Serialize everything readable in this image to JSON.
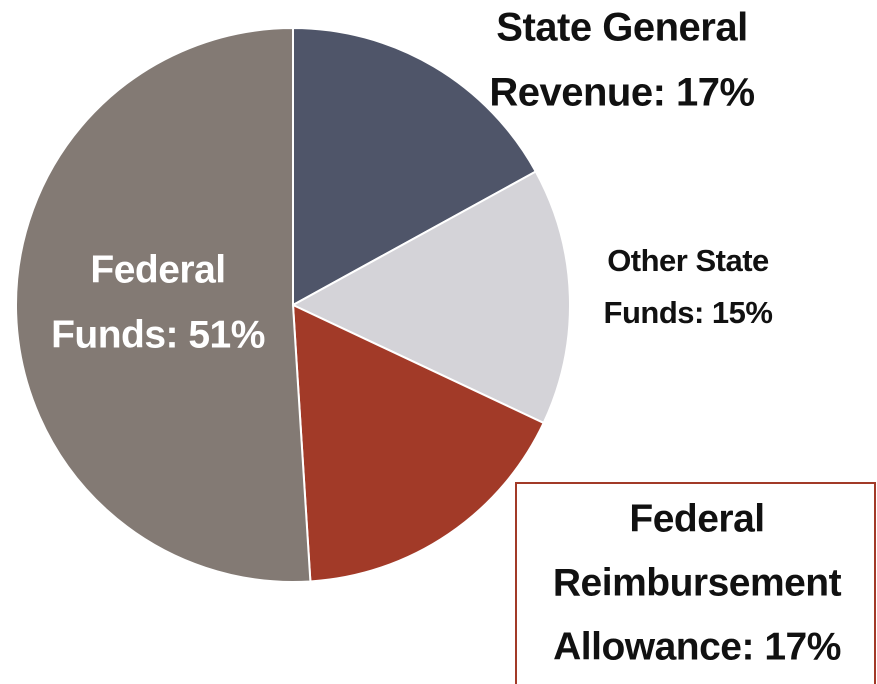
{
  "chart_data": {
    "type": "pie",
    "categories": [
      "State General Revenue",
      "Other State Funds",
      "Federal Reimbursement Allowance",
      "Federal Funds"
    ],
    "values": [
      17,
      15,
      17,
      51
    ],
    "value_labels": [
      "17%",
      "15%",
      "17%",
      "51%"
    ],
    "labels": [
      [
        "State General",
        "Revenue: 17%"
      ],
      [
        "Other State",
        "Funds: 15%"
      ],
      [
        "Federal",
        "Reimbursement",
        "Allowance: 17%"
      ],
      [
        "Federal",
        "Funds: 51%"
      ]
    ],
    "colors": [
      "#4f5569",
      "#d4d3d8",
      "#a23a28",
      "#837a74"
    ]
  }
}
